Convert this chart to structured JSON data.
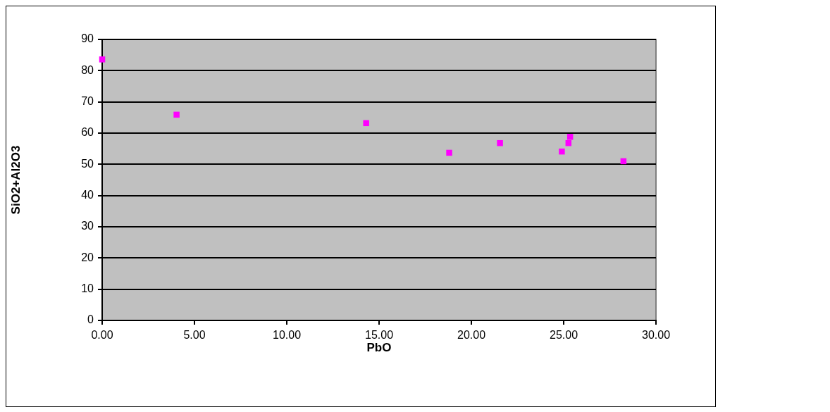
{
  "chart_data": {
    "type": "scatter",
    "xlabel": "PbO",
    "ylabel": "SiO2+Al2O3",
    "x": [
      0,
      4.03,
      14.3,
      18.8,
      21.55,
      24.9,
      25.26,
      25.35,
      28.24
    ],
    "series": [
      {
        "color": "#ff00ff",
        "values": [
          83.6,
          65.9,
          63.2,
          53.7,
          56.8,
          54.1,
          56.8,
          58.8,
          51.0
        ]
      }
    ],
    "xlim": [
      0,
      30
    ],
    "xticks": [
      {
        "value": 0,
        "label": "0.00"
      },
      {
        "value": 5,
        "label": "5.00"
      },
      {
        "value": 10,
        "label": "10.00"
      },
      {
        "value": 15,
        "label": "15.00"
      },
      {
        "value": 20,
        "label": "20.00"
      },
      {
        "value": 25,
        "label": "25.00"
      },
      {
        "value": 30,
        "label": "30.00"
      }
    ],
    "ylim": [
      0,
      90
    ],
    "yticks": [
      0,
      10,
      20,
      30,
      40,
      50,
      60,
      70,
      80,
      90
    ],
    "grid": "y",
    "legend": false,
    "marker": "square"
  }
}
